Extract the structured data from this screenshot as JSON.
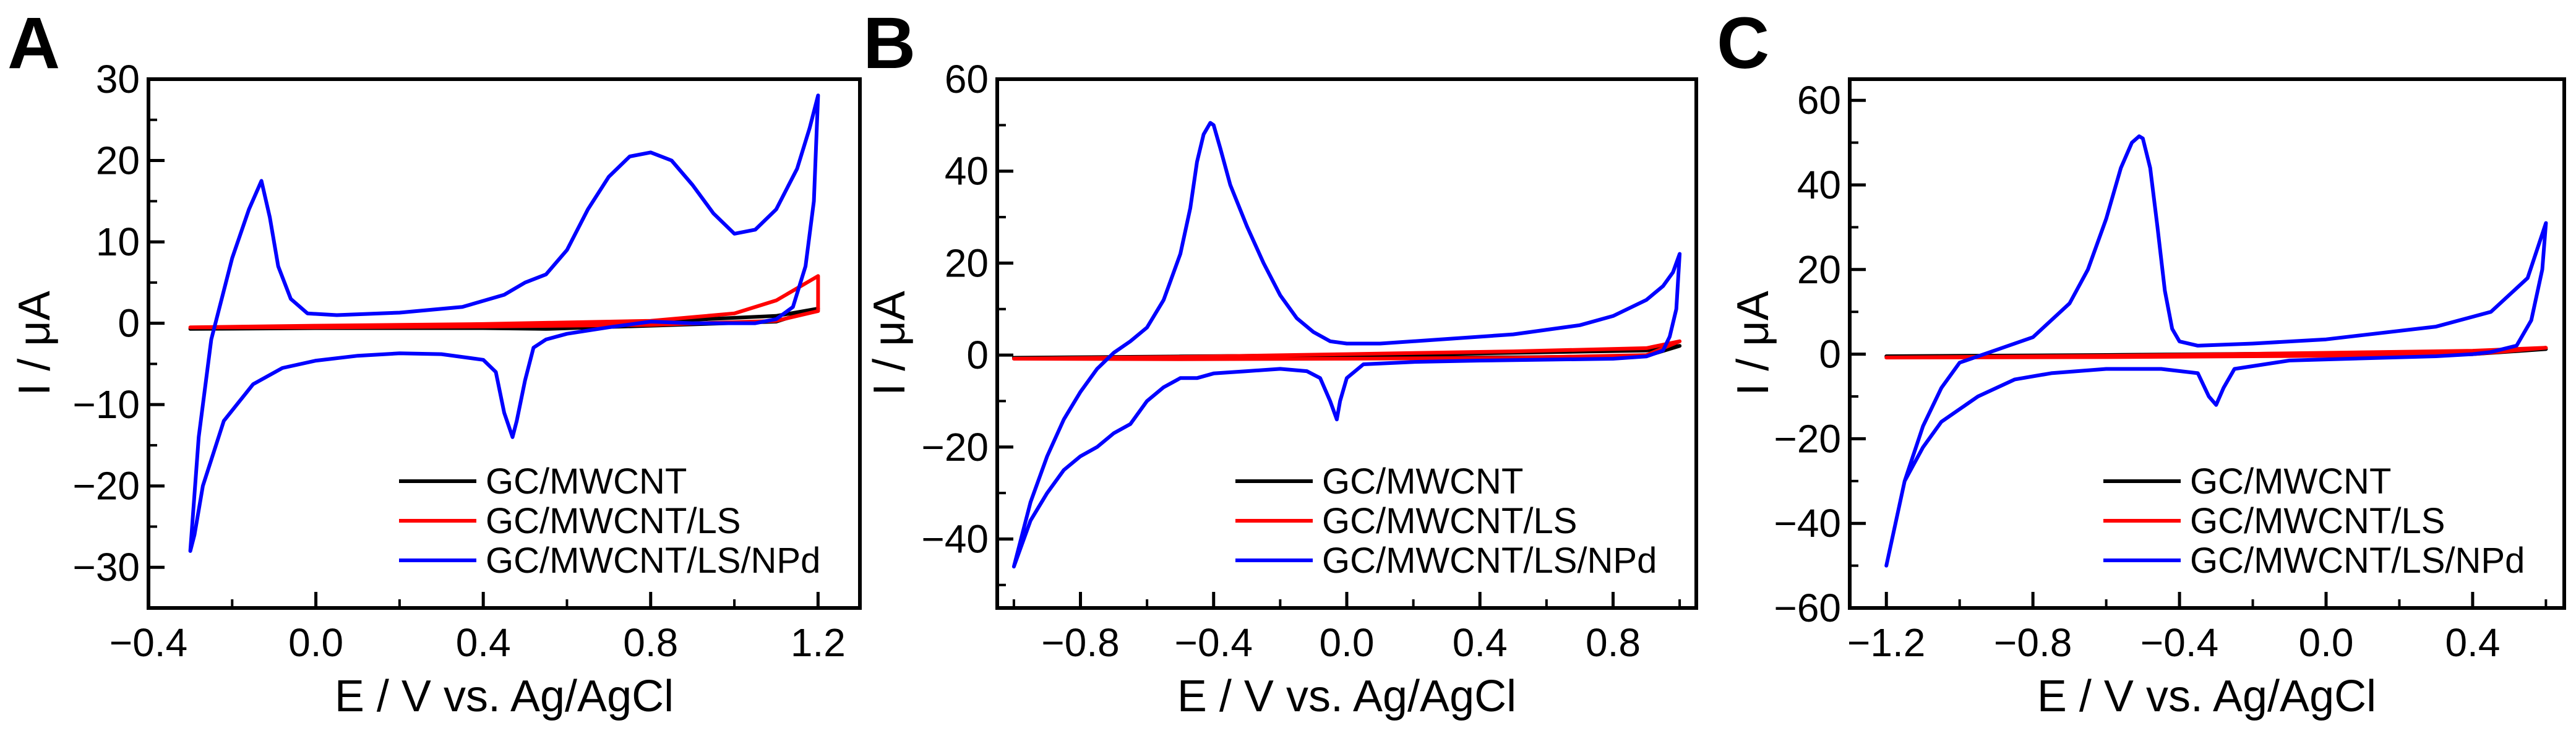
{
  "chart_data": [
    {
      "panel": "A",
      "type": "line",
      "title": "",
      "xlabel": "E / V  vs.  Ag/AgCl",
      "ylabel": "I / μA",
      "xlim": [
        -0.4,
        1.3
      ],
      "ylim": [
        -35,
        30
      ],
      "xticks": [
        -0.4,
        0.0,
        0.4,
        0.8,
        1.2
      ],
      "xtick_labels": [
        "−0.4",
        "0.0",
        "0.4",
        "0.8",
        "1.2"
      ],
      "yticks": [
        -30,
        -20,
        -10,
        0,
        10,
        20,
        30
      ],
      "ytick_labels": [
        "−30",
        "−20",
        "−10",
        "0",
        "10",
        "20",
        "30"
      ],
      "legend_position": "bottom-right",
      "series": [
        {
          "name": "GC/MWCNT",
          "color": "#000000",
          "x": [
            -0.3,
            0.0,
            0.4,
            0.8,
            1.1,
            1.2,
            1.1,
            0.8,
            0.55,
            0.4,
            0.0,
            -0.3
          ],
          "y": [
            -0.7,
            -0.4,
            -0.2,
            0.2,
            0.9,
            1.8,
            0.2,
            -0.3,
            -0.7,
            -0.6,
            -0.6,
            -0.7
          ]
        },
        {
          "name": "GC/MWCNT/LS",
          "color": "#ff0000",
          "x": [
            -0.3,
            0.0,
            0.4,
            0.8,
            1.0,
            1.1,
            1.2,
            1.2,
            1.1,
            0.8,
            0.4,
            0.0,
            -0.3
          ],
          "y": [
            -0.5,
            -0.3,
            -0.1,
            0.3,
            1.2,
            2.8,
            5.8,
            1.5,
            0.3,
            -0.2,
            -0.4,
            -0.5,
            -0.5
          ]
        },
        {
          "name": "GC/MWCNT/LS/NPd",
          "color": "#0000ff",
          "x": [
            -0.3,
            -0.28,
            -0.25,
            -0.2,
            -0.16,
            -0.13,
            -0.11,
            -0.09,
            -0.06,
            -0.02,
            0.05,
            0.2,
            0.35,
            0.45,
            0.5,
            0.55,
            0.6,
            0.65,
            0.7,
            0.75,
            0.8,
            0.85,
            0.9,
            0.95,
            1.0,
            1.05,
            1.1,
            1.15,
            1.18,
            1.2,
            1.19,
            1.17,
            1.14,
            1.1,
            1.05,
            1.0,
            0.9,
            0.8,
            0.7,
            0.6,
            0.55,
            0.52,
            0.5,
            0.48,
            0.47,
            0.45,
            0.43,
            0.4,
            0.3,
            0.2,
            0.1,
            0.0,
            -0.08,
            -0.15,
            -0.22,
            -0.27,
            -0.29,
            -0.3
          ],
          "y": [
            -28.0,
            -14.0,
            -2.0,
            8.0,
            14.0,
            17.5,
            13.0,
            7.0,
            3.0,
            1.2,
            1.0,
            1.3,
            2.0,
            3.5,
            5.0,
            6.0,
            9.0,
            14.0,
            18.0,
            20.5,
            21.0,
            20.0,
            17.0,
            13.5,
            11.0,
            11.5,
            14.0,
            19.0,
            24.0,
            28.0,
            15.0,
            7.0,
            2.0,
            0.5,
            0.0,
            0.0,
            0.0,
            0.2,
            -0.5,
            -1.3,
            -2.0,
            -3.0,
            -7.0,
            -12.0,
            -14.0,
            -11.0,
            -6.0,
            -4.5,
            -3.8,
            -3.7,
            -4.0,
            -4.6,
            -5.5,
            -7.5,
            -12.0,
            -20.0,
            -26.0,
            -28.0
          ]
        }
      ]
    },
    {
      "panel": "B",
      "type": "line",
      "title": "",
      "xlabel": "E / V  vs.  Ag/AgCl",
      "ylabel": "I / μA",
      "xlim": [
        -1.05,
        1.05
      ],
      "ylim": [
        -55,
        60
      ],
      "xticks": [
        -0.8,
        -0.4,
        0.0,
        0.4,
        0.8
      ],
      "xtick_labels": [
        "−0.8",
        "−0.4",
        "0.0",
        "0.4",
        "0.8"
      ],
      "yticks": [
        -40,
        -20,
        0,
        20,
        40,
        60
      ],
      "ytick_labels": [
        "−40",
        "−20",
        "0",
        "20",
        "40",
        "60"
      ],
      "legend_position": "bottom-right",
      "series": [
        {
          "name": "GC/MWCNT",
          "color": "#000000",
          "x": [
            -1.0,
            -0.5,
            0.0,
            0.5,
            0.9,
            1.0,
            0.9,
            0.5,
            0.0,
            -0.5,
            -1.0
          ],
          "y": [
            -0.6,
            -0.3,
            0.0,
            0.5,
            1.0,
            2.0,
            -0.2,
            -0.5,
            -0.5,
            -0.6,
            -0.6
          ]
        },
        {
          "name": "GC/MWCNT/LS",
          "color": "#ff0000",
          "x": [
            -1.0,
            -0.5,
            0.0,
            0.5,
            0.9,
            1.0,
            0.9,
            0.5,
            0.0,
            -0.5,
            -1.0
          ],
          "y": [
            -0.8,
            -0.4,
            0.2,
            0.8,
            1.5,
            3.0,
            0.0,
            -0.6,
            -0.8,
            -0.9,
            -0.8
          ]
        },
        {
          "name": "GC/MWCNT/LS/NPd",
          "color": "#0000ff",
          "x": [
            -1.0,
            -0.95,
            -0.9,
            -0.85,
            -0.8,
            -0.75,
            -0.7,
            -0.65,
            -0.6,
            -0.55,
            -0.5,
            -0.47,
            -0.45,
            -0.43,
            -0.41,
            -0.4,
            -0.38,
            -0.35,
            -0.3,
            -0.25,
            -0.2,
            -0.15,
            -0.1,
            -0.05,
            0.0,
            0.1,
            0.3,
            0.5,
            0.7,
            0.8,
            0.9,
            0.95,
            0.98,
            1.0,
            0.99,
            0.97,
            0.95,
            0.9,
            0.8,
            0.6,
            0.4,
            0.2,
            0.05,
            0.0,
            -0.02,
            -0.03,
            -0.05,
            -0.08,
            -0.12,
            -0.2,
            -0.3,
            -0.4,
            -0.45,
            -0.5,
            -0.55,
            -0.6,
            -0.65,
            -0.7,
            -0.75,
            -0.8,
            -0.85,
            -0.9,
            -0.95,
            -1.0
          ],
          "y": [
            -46.0,
            -32.0,
            -22.0,
            -14.0,
            -8.0,
            -3.0,
            0.5,
            3.0,
            6.0,
            12.0,
            22.0,
            32.0,
            42.0,
            48.0,
            50.5,
            50.0,
            45.0,
            37.0,
            28.0,
            20.0,
            13.0,
            8.0,
            5.0,
            3.0,
            2.5,
            2.5,
            3.5,
            4.5,
            6.5,
            8.5,
            12.0,
            15.0,
            18.0,
            22.0,
            10.0,
            4.0,
            1.0,
            -0.3,
            -0.8,
            -1.0,
            -1.2,
            -1.5,
            -2.0,
            -5.0,
            -10.0,
            -14.0,
            -10.0,
            -5.0,
            -3.5,
            -3.0,
            -3.5,
            -4.0,
            -5.0,
            -5.0,
            -7.0,
            -10.0,
            -15.0,
            -17.0,
            -20.0,
            -22.0,
            -25.0,
            -30.0,
            -36.0,
            -46.0
          ]
        }
      ]
    },
    {
      "panel": "C",
      "type": "line",
      "title": "",
      "xlabel": "E / V  vs.  Ag/AgCl",
      "ylabel": "I / μA",
      "xlim": [
        -1.3,
        0.65
      ],
      "ylim": [
        -60,
        65
      ],
      "xticks": [
        -1.2,
        -0.8,
        -0.4,
        0.0,
        0.4
      ],
      "xtick_labels": [
        "−1.2",
        "−0.8",
        "−0.4",
        "0.0",
        "0.4"
      ],
      "yticks": [
        -60,
        -40,
        -20,
        0,
        20,
        40,
        60
      ],
      "ytick_labels": [
        "−60",
        "−40",
        "−20",
        "0",
        "20",
        "40",
        "60"
      ],
      "legend_position": "bottom-right",
      "series": [
        {
          "name": "GC/MWCNT",
          "color": "#000000",
          "x": [
            -1.2,
            -0.6,
            0.0,
            0.4,
            0.6,
            0.4,
            0.0,
            -0.6,
            -1.2
          ],
          "y": [
            -0.5,
            -0.2,
            0.2,
            0.5,
            1.2,
            0.0,
            -0.2,
            -0.4,
            -0.5
          ]
        },
        {
          "name": "GC/MWCNT/LS",
          "color": "#ff0000",
          "x": [
            -1.2,
            -0.6,
            0.0,
            0.4,
            0.6,
            0.4,
            0.0,
            -0.6,
            -1.2
          ],
          "y": [
            -0.8,
            -0.4,
            0.3,
            0.8,
            1.5,
            0.0,
            -0.4,
            -0.7,
            -0.8
          ]
        },
        {
          "name": "GC/MWCNT/LS/NPd",
          "color": "#0000ff",
          "x": [
            -1.2,
            -1.15,
            -1.1,
            -1.05,
            -1.0,
            -0.9,
            -0.8,
            -0.7,
            -0.65,
            -0.6,
            -0.56,
            -0.53,
            -0.51,
            -0.5,
            -0.48,
            -0.46,
            -0.44,
            -0.42,
            -0.4,
            -0.35,
            -0.2,
            0.0,
            0.1,
            0.3,
            0.45,
            0.55,
            0.6,
            0.59,
            0.56,
            0.52,
            0.45,
            0.4,
            0.3,
            0.1,
            -0.1,
            -0.25,
            -0.28,
            -0.3,
            -0.32,
            -0.35,
            -0.45,
            -0.6,
            -0.75,
            -0.85,
            -0.95,
            -1.05,
            -1.1,
            -1.15,
            -1.2
          ],
          "y": [
            -50.0,
            -30.0,
            -17.0,
            -8.0,
            -2.0,
            1.0,
            4.0,
            12.0,
            20.0,
            32.0,
            44.0,
            50.0,
            51.5,
            51.0,
            44.0,
            30.0,
            15.0,
            6.0,
            3.0,
            2.0,
            2.5,
            3.5,
            4.5,
            6.5,
            10.0,
            18.0,
            31.0,
            20.0,
            8.0,
            2.0,
            0.5,
            0.0,
            -0.5,
            -1.0,
            -1.5,
            -3.5,
            -8.0,
            -12.0,
            -10.0,
            -4.5,
            -3.5,
            -3.5,
            -4.5,
            -6.0,
            -10.0,
            -16.0,
            -22.0,
            -30.0,
            -50.0
          ]
        }
      ]
    }
  ]
}
